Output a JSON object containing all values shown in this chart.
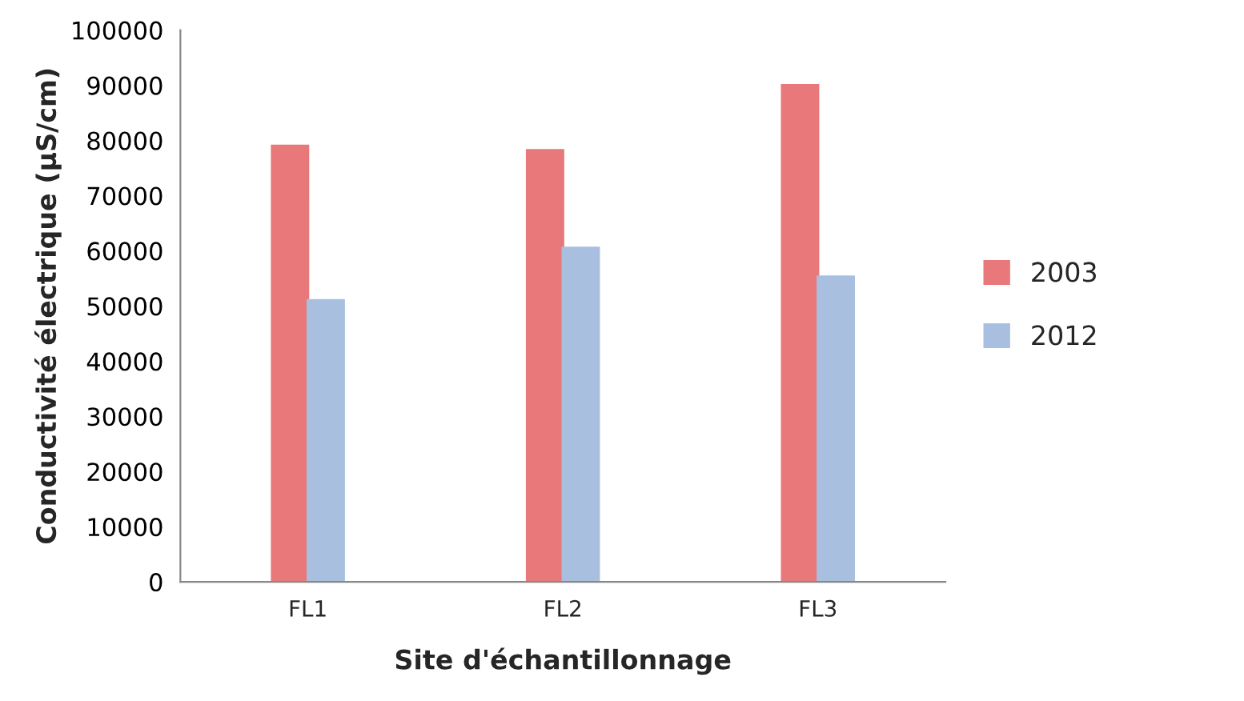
{
  "chart_data": {
    "type": "bar",
    "xlabel": "Site d'échantillonnage",
    "ylabel": "Conductivité électrique (µS/cm)",
    "categories": [
      "FL1",
      "FL2",
      "FL3"
    ],
    "series": [
      {
        "name": "2003",
        "color": "#e8787a",
        "values": [
          79000,
          78200,
          90000
        ]
      },
      {
        "name": "2012",
        "color": "#a9bfe0",
        "values": [
          51000,
          60500,
          55300
        ]
      }
    ],
    "ylim": [
      0,
      100000
    ],
    "yticks": [
      0,
      10000,
      20000,
      30000,
      40000,
      50000,
      60000,
      70000,
      80000,
      90000,
      100000
    ],
    "grid": false,
    "legend": "right"
  }
}
